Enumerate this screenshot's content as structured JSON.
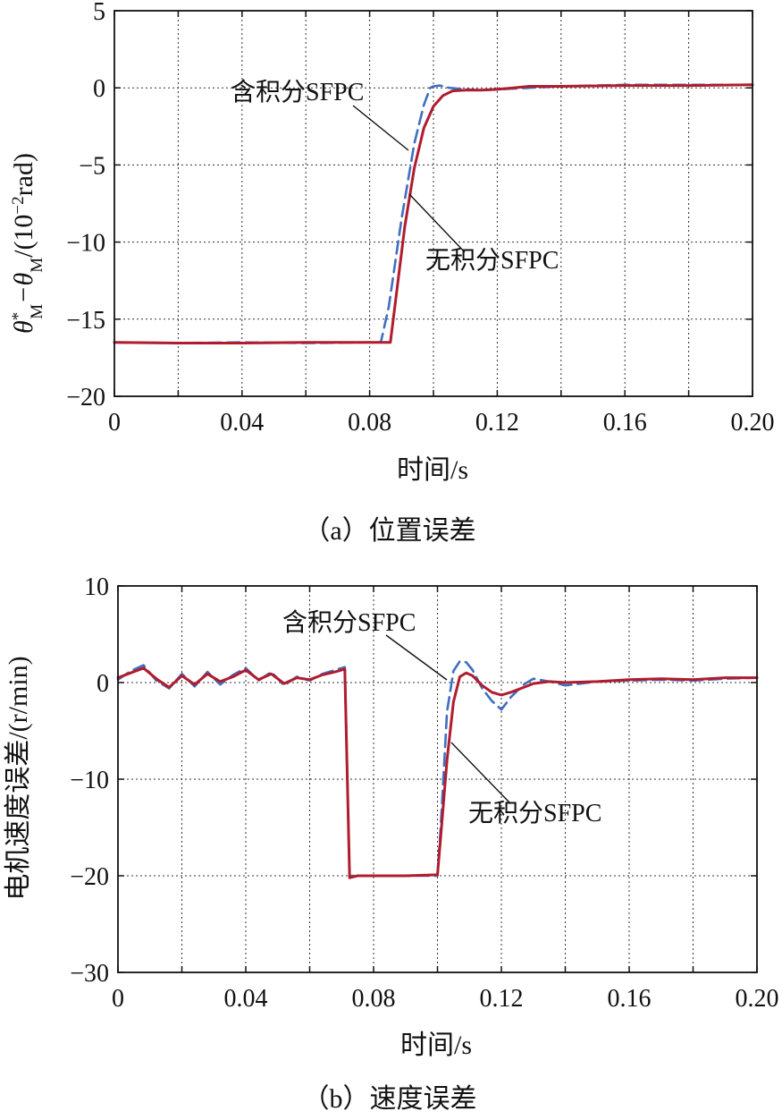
{
  "chart_data": [
    {
      "type": "line",
      "caption": "（a）位置误差",
      "xlabel": "时间/s",
      "ylabel": {
        "prefix": "θ",
        "sup": "*",
        "sub": "M",
        "mid": "−θ",
        "sub2": "M",
        "unit_open": "/(10",
        "unit_exp": "−2",
        "unit_close": "rad)"
      },
      "xlim": [
        0,
        0.2
      ],
      "ylim": [
        -20,
        5
      ],
      "xticks": [
        0,
        0.04,
        0.08,
        0.12,
        0.16,
        0.2
      ],
      "xtick_labels": [
        "0",
        "0.04",
        "0.08",
        "0.12",
        "0.16",
        "0.20"
      ],
      "yticks": [
        -20,
        -15,
        -10,
        -5,
        0,
        5
      ],
      "ytick_labels": [
        "−20",
        "−15",
        "−10",
        "−5",
        "0",
        "5"
      ],
      "grid": true,
      "series": [
        {
          "name": "含积分SFPC",
          "color": "#3f6fbf",
          "dash": true,
          "x": [
            0,
            0.02,
            0.04,
            0.06,
            0.08,
            0.0835,
            0.086,
            0.09,
            0.094,
            0.097,
            0.099,
            0.1,
            0.102,
            0.105,
            0.11,
            0.115,
            0.12,
            0.13,
            0.14,
            0.16,
            0.18,
            0.2
          ],
          "y": [
            -16.5,
            -16.55,
            -16.5,
            -16.55,
            -16.5,
            -16.5,
            -14.2,
            -8.5,
            -3.6,
            -1.1,
            0,
            0.1,
            0.15,
            0,
            -0.1,
            -0.15,
            -0.1,
            0,
            0.1,
            0.2,
            0.2,
            0.2
          ]
        },
        {
          "name": "无积分SFPC",
          "color": "#b01c2e",
          "dash": false,
          "x": [
            0,
            0.02,
            0.04,
            0.06,
            0.08,
            0.0865,
            0.088,
            0.091,
            0.094,
            0.097,
            0.1,
            0.103,
            0.106,
            0.11,
            0.115,
            0.12,
            0.125,
            0.13,
            0.14,
            0.16,
            0.18,
            0.2
          ],
          "y": [
            -16.5,
            -16.55,
            -16.55,
            -16.5,
            -16.5,
            -16.5,
            -14,
            -9,
            -5.2,
            -2.6,
            -1.2,
            -0.5,
            -0.2,
            -0.15,
            -0.15,
            -0.1,
            0,
            0.1,
            0.1,
            0.15,
            0.15,
            0.2
          ]
        }
      ],
      "annotations": [
        {
          "text": "含积分SFPC",
          "series": 0
        },
        {
          "text": "无积分SFPC",
          "series": 1
        }
      ]
    },
    {
      "type": "line",
      "caption": "（b）速度误差",
      "xlabel": "时间/s",
      "ylabel": "电机速度误差/(r/min)",
      "xlim": [
        0,
        0.2
      ],
      "ylim": [
        -30,
        10
      ],
      "xticks": [
        0,
        0.04,
        0.08,
        0.12,
        0.16,
        0.2
      ],
      "xtick_labels": [
        "0",
        "0.04",
        "0.08",
        "0.12",
        "0.16",
        "0.20"
      ],
      "yticks": [
        -30,
        -20,
        -10,
        0,
        10
      ],
      "ytick_labels": [
        "−30",
        "−20",
        "−10",
        "0",
        "10"
      ],
      "grid": true,
      "series": [
        {
          "name": "含积分SFPC",
          "color": "#3f6fbf",
          "dash": true,
          "x": [
            0,
            0.004,
            0.008,
            0.012,
            0.016,
            0.02,
            0.024,
            0.028,
            0.032,
            0.036,
            0.04,
            0.044,
            0.048,
            0.052,
            0.056,
            0.06,
            0.064,
            0.068,
            0.071,
            0.0725,
            0.075,
            0.08,
            0.09,
            0.1,
            0.101,
            0.103,
            0.105,
            0.107,
            0.109,
            0.111,
            0.114,
            0.117,
            0.12,
            0.123,
            0.127,
            0.13,
            0.135,
            0.14,
            0.15,
            0.16,
            0.17,
            0.18,
            0.19,
            0.2
          ],
          "y": [
            0.3,
            1.2,
            1.8,
            0.2,
            -0.6,
            0.9,
            -0.4,
            1.1,
            -0.2,
            0.8,
            1.5,
            0.2,
            1.1,
            -0.3,
            0.6,
            0.2,
            0.9,
            1.3,
            1.6,
            -20,
            -20,
            -20,
            -20,
            -20,
            -15,
            -3,
            1.2,
            2.2,
            2.1,
            1.3,
            -0.6,
            -1.9,
            -2.8,
            -1.5,
            -0.2,
            0.4,
            0.1,
            -0.3,
            0.1,
            0.2,
            0.3,
            0.2,
            0.4,
            0.5
          ]
        },
        {
          "name": "无积分SFPC",
          "color": "#b01c2e",
          "dash": false,
          "x": [
            0,
            0.004,
            0.008,
            0.012,
            0.016,
            0.02,
            0.024,
            0.028,
            0.032,
            0.036,
            0.04,
            0.044,
            0.048,
            0.052,
            0.056,
            0.06,
            0.064,
            0.068,
            0.071,
            0.0725,
            0.075,
            0.08,
            0.09,
            0.1,
            0.101,
            0.103,
            0.105,
            0.107,
            0.109,
            0.111,
            0.114,
            0.117,
            0.12,
            0.123,
            0.127,
            0.13,
            0.135,
            0.14,
            0.15,
            0.16,
            0.17,
            0.18,
            0.19,
            0.2
          ],
          "y": [
            0.5,
            1.0,
            1.5,
            0.4,
            -0.5,
            0.7,
            -0.2,
            0.9,
            0.1,
            0.6,
            1.3,
            0.3,
            0.9,
            -0.1,
            0.5,
            0.3,
            0.8,
            1.1,
            1.4,
            -20.2,
            -20,
            -20,
            -20,
            -19.9,
            -16,
            -8,
            -2,
            0.6,
            1.0,
            0.7,
            -0.3,
            -1.0,
            -1.3,
            -1.0,
            -0.5,
            -0.1,
            0.1,
            0,
            0.1,
            0.3,
            0.4,
            0.3,
            0.5,
            0.5
          ]
        }
      ],
      "annotations": [
        {
          "text": "含积分SFPC",
          "series": 0
        },
        {
          "text": "无积分SFPC",
          "series": 1
        }
      ]
    }
  ]
}
